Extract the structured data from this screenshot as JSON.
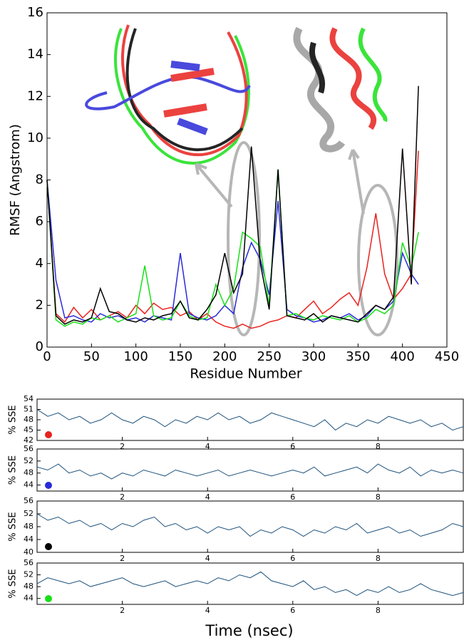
{
  "chart_data": [
    {
      "type": "line",
      "ylabel": "RMSF (Angstrom)",
      "xlabel": "Residue Number",
      "x": [
        0,
        10,
        20,
        30,
        40,
        50,
        60,
        70,
        80,
        90,
        100,
        110,
        120,
        130,
        140,
        150,
        160,
        170,
        180,
        190,
        200,
        210,
        220,
        230,
        240,
        250,
        260,
        270,
        280,
        290,
        300,
        310,
        320,
        330,
        340,
        350,
        360,
        370,
        380,
        390,
        400,
        410,
        418
      ],
      "series": [
        {
          "color": "#e8221e",
          "values": [
            8,
            1.6,
            1.2,
            1.9,
            1.4,
            1.8,
            1.3,
            1.5,
            1.7,
            1.4,
            2.0,
            1.6,
            2.1,
            1.8,
            1.9,
            1.5,
            1.7,
            1.3,
            1.6,
            1.2,
            1.0,
            0.9,
            1.1,
            0.9,
            1.0,
            1.2,
            1.3,
            1.5,
            1.4,
            1.8,
            2.2,
            1.6,
            1.9,
            2.3,
            2.6,
            2.0,
            3.8,
            6.4,
            3.5,
            2.3,
            2.8,
            3.5,
            9.4
          ]
        },
        {
          "color": "#2a2ad8",
          "values": [
            8,
            3.2,
            1.4,
            1.5,
            1.3,
            1.2,
            1.6,
            1.4,
            1.5,
            1.3,
            1.4,
            1.2,
            1.5,
            1.4,
            1.3,
            4.5,
            1.6,
            1.4,
            1.3,
            1.5,
            2.0,
            1.6,
            3.8,
            5.0,
            4.2,
            2.5,
            7.0,
            1.8,
            1.5,
            1.4,
            1.2,
            1.3,
            1.5,
            1.4,
            1.6,
            1.3,
            1.5,
            2.0,
            1.8,
            2.2,
            4.5,
            3.5,
            3.0
          ]
        },
        {
          "color": "#18e018",
          "values": [
            8,
            1.3,
            1.0,
            1.2,
            1.1,
            1.4,
            1.3,
            1.5,
            1.2,
            1.4,
            1.6,
            3.9,
            1.5,
            1.3,
            1.4,
            2.2,
            1.5,
            1.3,
            1.4,
            3.0,
            2.0,
            2.8,
            5.5,
            5.2,
            4.8,
            2.0,
            8.5,
            1.5,
            1.6,
            1.4,
            1.3,
            1.5,
            1.4,
            1.3,
            1.5,
            1.2,
            1.4,
            1.8,
            1.6,
            2.0,
            5.0,
            3.8,
            5.5
          ]
        },
        {
          "color": "#000000",
          "values": [
            8,
            1.5,
            1.1,
            1.3,
            1.2,
            1.4,
            2.8,
            1.7,
            1.6,
            1.3,
            1.2,
            1.4,
            1.3,
            1.5,
            1.6,
            2.2,
            1.4,
            1.3,
            1.8,
            2.5,
            4.5,
            2.6,
            3.5,
            9.6,
            4.0,
            1.8,
            8.5,
            1.5,
            1.4,
            1.3,
            1.6,
            1.2,
            1.5,
            1.4,
            1.3,
            1.2,
            1.6,
            2.0,
            1.8,
            2.4,
            9.5,
            3.0,
            12.5
          ]
        }
      ],
      "xlim": [
        0,
        450
      ],
      "ylim": [
        0,
        16
      ],
      "xticks": [
        0,
        50,
        100,
        150,
        200,
        250,
        300,
        350,
        400,
        450
      ],
      "yticks": [
        0,
        2,
        4,
        6,
        8,
        10,
        12,
        14,
        16
      ]
    },
    {
      "type": "line",
      "ylabel": "% SSE",
      "marker_color": "#e8221e",
      "color": "#1a4f7a",
      "x": [
        0,
        0.25,
        0.5,
        0.75,
        1,
        1.25,
        1.5,
        1.75,
        2,
        2.25,
        2.5,
        2.75,
        3,
        3.25,
        3.5,
        3.75,
        4,
        4.25,
        4.5,
        4.75,
        5,
        5.25,
        5.5,
        5.75,
        6,
        6.25,
        6.5,
        6.75,
        7,
        7.25,
        7.5,
        7.75,
        8,
        8.25,
        8.5,
        8.75,
        9,
        9.25,
        9.5,
        9.75,
        10
      ],
      "values": [
        51,
        49,
        50,
        48,
        49,
        47,
        48,
        50,
        48,
        47,
        49,
        48,
        46,
        48,
        47,
        49,
        48,
        50,
        48,
        49,
        47,
        48,
        50,
        49,
        48,
        47,
        46,
        48,
        45,
        47,
        46,
        48,
        47,
        49,
        48,
        47,
        48,
        46,
        47,
        45,
        46
      ],
      "xlim": [
        0,
        10
      ],
      "ylim": [
        42,
        54
      ],
      "xticks": [
        2,
        4,
        6,
        8
      ],
      "yticks": [
        42,
        45,
        48,
        51,
        54
      ]
    },
    {
      "type": "line",
      "ylabel": "% SSE",
      "marker_color": "#2a2ad8",
      "color": "#1a4f7a",
      "x": [
        0,
        0.25,
        0.5,
        0.75,
        1,
        1.25,
        1.5,
        1.75,
        2,
        2.25,
        2.5,
        2.75,
        3,
        3.25,
        3.5,
        3.75,
        4,
        4.25,
        4.5,
        4.75,
        5,
        5.25,
        5.5,
        5.75,
        6,
        6.25,
        6.5,
        6.75,
        7,
        7.25,
        7.5,
        7.75,
        8,
        8.25,
        8.5,
        8.75,
        9,
        9.25,
        9.5,
        9.75,
        10
      ],
      "values": [
        50,
        49,
        51,
        48,
        49,
        47,
        48,
        46,
        48,
        47,
        49,
        48,
        47,
        49,
        48,
        47,
        48,
        49,
        47,
        48,
        49,
        48,
        47,
        48,
        49,
        48,
        50,
        47,
        48,
        49,
        50,
        48,
        51,
        49,
        48,
        50,
        47,
        49,
        48,
        49,
        48
      ],
      "xlim": [
        0,
        10
      ],
      "ylim": [
        42,
        56
      ],
      "xticks": [
        2,
        4,
        6,
        8
      ],
      "yticks": [
        44,
        48,
        52,
        56
      ]
    },
    {
      "type": "line",
      "ylabel": "% SSE",
      "marker_color": "#000000",
      "color": "#1a4f7a",
      "x": [
        0,
        0.25,
        0.5,
        0.75,
        1,
        1.25,
        1.5,
        1.75,
        2,
        2.25,
        2.5,
        2.75,
        3,
        3.25,
        3.5,
        3.75,
        4,
        4.25,
        4.5,
        4.75,
        5,
        5.25,
        5.5,
        5.75,
        6,
        6.25,
        6.5,
        6.75,
        7,
        7.25,
        7.5,
        7.75,
        8,
        8.25,
        8.5,
        8.75,
        9,
        9.25,
        9.5,
        9.75,
        10
      ],
      "values": [
        52,
        50,
        51,
        49,
        50,
        48,
        49,
        47,
        49,
        48,
        50,
        51,
        48,
        49,
        47,
        48,
        46,
        48,
        47,
        48,
        45,
        47,
        46,
        48,
        47,
        45,
        47,
        46,
        48,
        47,
        49,
        46,
        47,
        48,
        46,
        47,
        45,
        46,
        47,
        49,
        48
      ],
      "xlim": [
        0,
        10
      ],
      "ylim": [
        40,
        56
      ],
      "xticks": [
        2,
        4,
        6,
        8
      ],
      "yticks": [
        40,
        44,
        48,
        52,
        56
      ]
    },
    {
      "type": "line",
      "ylabel": "% SSE",
      "xlabel": "Time (nsec)",
      "marker_color": "#18e018",
      "color": "#1a4f7a",
      "x": [
        0,
        0.25,
        0.5,
        0.75,
        1,
        1.25,
        1.5,
        1.75,
        2,
        2.25,
        2.5,
        2.75,
        3,
        3.25,
        3.5,
        3.75,
        4,
        4.25,
        4.5,
        4.75,
        5,
        5.25,
        5.5,
        5.75,
        6,
        6.25,
        6.5,
        6.75,
        7,
        7.25,
        7.5,
        7.75,
        8,
        8.25,
        8.5,
        8.75,
        9,
        9.25,
        9.5,
        9.75,
        10
      ],
      "values": [
        49,
        51,
        50,
        49,
        50,
        48,
        49,
        50,
        51,
        49,
        48,
        49,
        50,
        48,
        49,
        50,
        49,
        51,
        50,
        52,
        51,
        53,
        50,
        49,
        48,
        50,
        47,
        48,
        46,
        47,
        45,
        47,
        46,
        48,
        46,
        47,
        49,
        47,
        46,
        45,
        46
      ],
      "xlim": [
        0,
        10
      ],
      "ylim": [
        42,
        56
      ],
      "xticks": [
        2,
        4,
        6,
        8
      ],
      "yticks": [
        44,
        48,
        52,
        56
      ]
    }
  ]
}
